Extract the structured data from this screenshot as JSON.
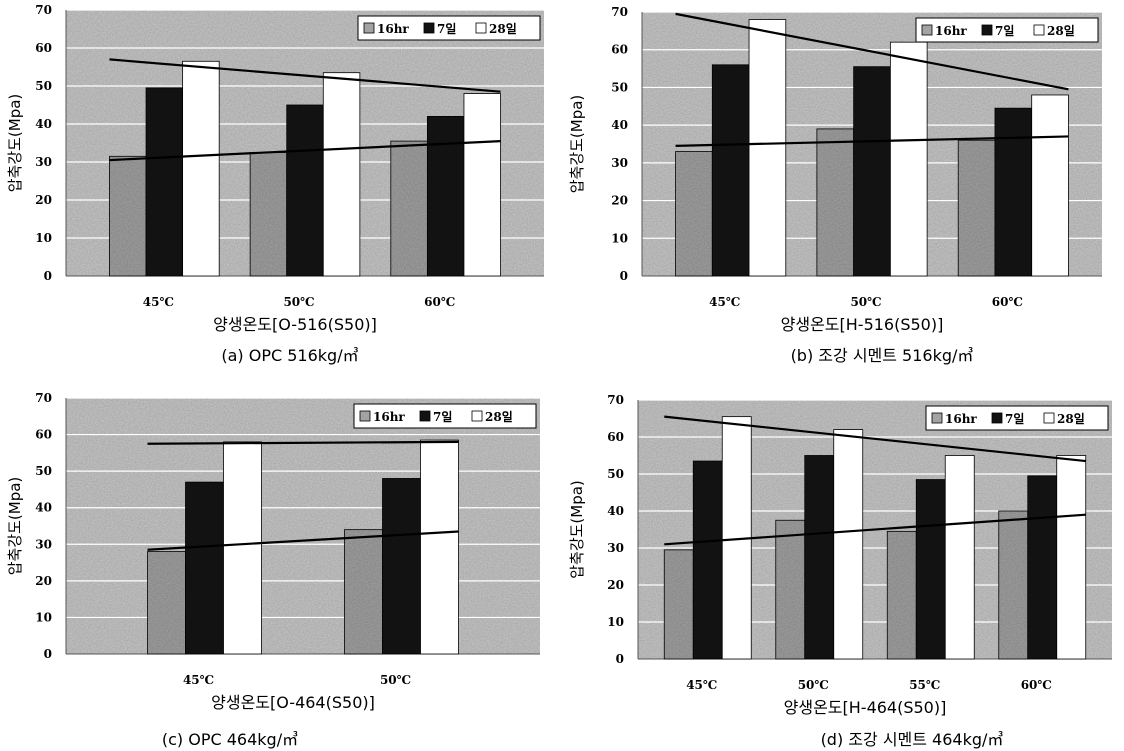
{
  "colors": {
    "plot_bg": "#c9c9c9",
    "grid": "#ffffff",
    "s16hr": "#a3a3a3",
    "s7day": "#121212",
    "s28day": "#ffffff",
    "trend": "#000000"
  },
  "legend": [
    "16hr",
    "7일",
    "28일"
  ],
  "chart_data": [
    {
      "type": "bar",
      "title": "",
      "caption": "(a) OPC 516kg/㎥",
      "xlabel": "양생온도[O-516(S50)]",
      "ylabel": "압축강도(Mpa)",
      "ylim": [
        0,
        70
      ],
      "yticks": [
        "0",
        "10",
        "20",
        "30",
        "40",
        "50",
        "60",
        "70"
      ],
      "categories": [
        "45℃",
        "50℃",
        "60℃"
      ],
      "series": [
        {
          "name": "16hr",
          "values": [
            31.5,
            32.5,
            35.5
          ]
        },
        {
          "name": "7일",
          "values": [
            49.5,
            45.0,
            42.0
          ]
        },
        {
          "name": "28일",
          "values": [
            56.5,
            53.5,
            48.0
          ]
        }
      ],
      "trendlines": [
        {
          "from": [
            0,
            57.0
          ],
          "to": [
            2,
            48.5
          ]
        },
        {
          "from": [
            0,
            30.5
          ],
          "to": [
            2,
            35.5
          ]
        }
      ],
      "grid": true,
      "legend_position": "top-right"
    },
    {
      "type": "bar",
      "title": "",
      "caption": "(b) 조강 시멘트 516kg/㎥",
      "xlabel": "양생온도[H-516(S50)]",
      "ylabel": "압축강도(Mpa)",
      "ylim": [
        0,
        70
      ],
      "yticks": [
        "0",
        "10",
        "20",
        "30",
        "40",
        "50",
        "60",
        "70"
      ],
      "categories": [
        "45℃",
        "50℃",
        "60℃"
      ],
      "series": [
        {
          "name": "16hr",
          "values": [
            33.0,
            39.0,
            36.0
          ]
        },
        {
          "name": "7일",
          "values": [
            56.0,
            55.5,
            44.5
          ]
        },
        {
          "name": "28일",
          "values": [
            68.0,
            62.0,
            48.0
          ]
        }
      ],
      "trendlines": [
        {
          "from": [
            0,
            69.5
          ],
          "to": [
            2,
            49.5
          ]
        },
        {
          "from": [
            0,
            34.5
          ],
          "to": [
            2,
            37.0
          ]
        }
      ],
      "grid": true,
      "legend_position": "top-right"
    },
    {
      "type": "bar",
      "title": "",
      "caption": "(c) OPC 464kg/㎥",
      "xlabel": "양생온도[O-464(S50)]",
      "ylabel": "압축강도(Mpa)",
      "ylim": [
        0,
        70
      ],
      "yticks": [
        "0",
        "10",
        "20",
        "30",
        "40",
        "50",
        "60",
        "70"
      ],
      "categories": [
        "45℃",
        "50℃"
      ],
      "series": [
        {
          "name": "16hr",
          "values": [
            28.0,
            34.0
          ]
        },
        {
          "name": "7일",
          "values": [
            47.0,
            48.0
          ]
        },
        {
          "name": "28일",
          "values": [
            58.0,
            58.5
          ]
        }
      ],
      "trendlines": [
        {
          "from": [
            0,
            57.5
          ],
          "to": [
            1,
            58.0
          ]
        },
        {
          "from": [
            0,
            28.5
          ],
          "to": [
            1,
            33.5
          ]
        }
      ],
      "grid": true,
      "legend_position": "top-right"
    },
    {
      "type": "bar",
      "title": "",
      "caption": "(d) 조강 시멘트 464kg/㎥",
      "xlabel": "양생온도[H-464(S50)]",
      "ylabel": "압축강도(Mpa)",
      "ylim": [
        0,
        70
      ],
      "yticks": [
        "0",
        "10",
        "20",
        "30",
        "40",
        "50",
        "60",
        "70"
      ],
      "categories": [
        "45℃",
        "50℃",
        "55℃",
        "60℃"
      ],
      "series": [
        {
          "name": "16hr",
          "values": [
            29.5,
            37.5,
            34.5,
            40.0
          ]
        },
        {
          "name": "7일",
          "values": [
            53.5,
            55.0,
            48.5,
            49.5
          ]
        },
        {
          "name": "28일",
          "values": [
            65.5,
            62.0,
            55.0,
            55.0
          ]
        }
      ],
      "trendlines": [
        {
          "from": [
            0,
            65.5
          ],
          "to": [
            3,
            53.5
          ]
        },
        {
          "from": [
            0,
            31.0
          ],
          "to": [
            3,
            39.0
          ]
        }
      ],
      "grid": true,
      "legend_position": "top-right"
    }
  ]
}
